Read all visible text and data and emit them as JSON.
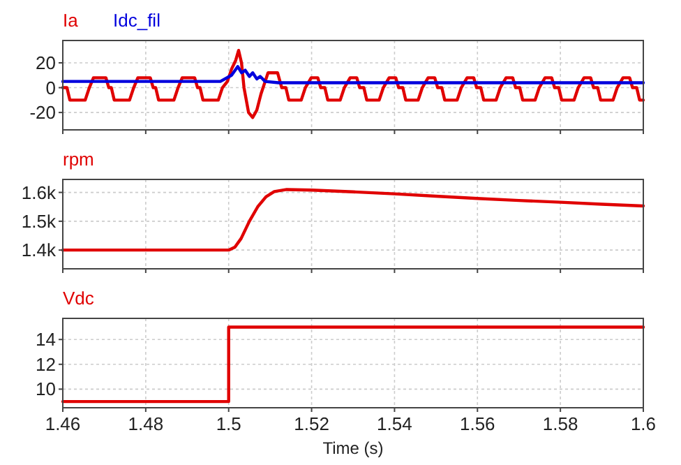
{
  "chart_data": [
    {
      "type": "line",
      "legend": "top left",
      "grid": true,
      "tick_labels": "y",
      "xlim": [
        1.46,
        1.6
      ],
      "xticks": [
        1.46,
        1.48,
        1.5,
        1.52,
        1.54,
        1.56,
        1.58,
        1.6
      ],
      "ylim": [
        -34,
        38
      ],
      "yticks": [
        -20,
        0,
        20
      ],
      "series": [
        {
          "name": "Ia",
          "color": "#e00000",
          "x": [
            1.46,
            1.461,
            1.4617,
            1.4654,
            1.4664,
            1.4674,
            1.4704,
            1.4711,
            1.4717,
            1.4724,
            1.4761,
            1.4771,
            1.4781,
            1.4811,
            1.4818,
            1.4824,
            1.4831,
            1.4868,
            1.4878,
            1.4888,
            1.4918,
            1.4925,
            1.4931,
            1.4938,
            1.4975,
            1.4985,
            1.4997,
            1.5007,
            1.5017,
            1.5024,
            1.5031,
            1.5037,
            1.5048,
            1.5058,
            1.5068,
            1.5078,
            1.5088,
            1.5095,
            1.5118,
            1.5128,
            1.5138,
            1.5145,
            1.5175,
            1.5185,
            1.5199,
            1.5215,
            1.5222,
            1.5232,
            1.5239,
            1.5269,
            1.5279,
            1.5293,
            1.5309,
            1.5316,
            1.5326,
            1.5333,
            1.5363,
            1.5373,
            1.5387,
            1.5403,
            1.541,
            1.542,
            1.5427,
            1.5457,
            1.5467,
            1.5481,
            1.5497,
            1.5504,
            1.5514,
            1.5521,
            1.5551,
            1.5561,
            1.5575,
            1.5591,
            1.5598,
            1.5608,
            1.5615,
            1.5645,
            1.5655,
            1.5669,
            1.5685,
            1.5692,
            1.5702,
            1.5709,
            1.5739,
            1.5749,
            1.5763,
            1.5779,
            1.5786,
            1.5796,
            1.5803,
            1.5833,
            1.5843,
            1.5857,
            1.5873,
            1.588,
            1.589,
            1.5897,
            1.5927,
            1.5937,
            1.5951,
            1.5967,
            1.5974,
            1.5984,
            1.5991,
            1.6
          ],
          "values": [
            0,
            0,
            -10,
            -10,
            0,
            8,
            8,
            0,
            0,
            -10,
            -10,
            0,
            8,
            8,
            0,
            0,
            -10,
            -10,
            0,
            8,
            8,
            0,
            0,
            -10,
            -10,
            0,
            5,
            15,
            22,
            30,
            20,
            0,
            -20,
            -24,
            -18,
            -5,
            5,
            12,
            12,
            0,
            0,
            -10,
            -10,
            0,
            8,
            8,
            0,
            0,
            -10,
            -10,
            0,
            8,
            8,
            0,
            0,
            -10,
            -10,
            0,
            8,
            8,
            0,
            0,
            -10,
            -10,
            0,
            8,
            8,
            0,
            0,
            -10,
            -10,
            0,
            8,
            8,
            0,
            0,
            -10,
            -10,
            0,
            8,
            8,
            0,
            0,
            -10,
            -10,
            0,
            8,
            8,
            0,
            0,
            -10,
            -10,
            0,
            8,
            8,
            0,
            0,
            -10,
            -10,
            0,
            8,
            8,
            0,
            0,
            -10,
            -10
          ]
        },
        {
          "name": "Idc_fil",
          "color": "#0000dd",
          "x": [
            1.46,
            1.498,
            1.5007,
            1.5022,
            1.5031,
            1.504,
            1.505,
            1.5058,
            1.5068,
            1.5076,
            1.5088,
            1.512,
            1.6
          ],
          "values": [
            5,
            5,
            10,
            17,
            12,
            14,
            9,
            12,
            7,
            9,
            5,
            4,
            4
          ]
        }
      ]
    },
    {
      "type": "line",
      "legend": "top left",
      "grid": true,
      "tick_labels": "y",
      "xlim": [
        1.46,
        1.6
      ],
      "xticks": [
        1.46,
        1.48,
        1.5,
        1.52,
        1.54,
        1.56,
        1.58,
        1.6
      ],
      "ylim": [
        1335,
        1645
      ],
      "yticks": [
        {
          "value": 1400,
          "label": "1.4k"
        },
        {
          "value": 1500,
          "label": "1.5k"
        },
        {
          "value": 1600,
          "label": "1.6k"
        }
      ],
      "series": [
        {
          "name": "rpm",
          "color": "#e00000",
          "x": [
            1.46,
            1.5,
            1.5015,
            1.503,
            1.505,
            1.507,
            1.509,
            1.511,
            1.514,
            1.52,
            1.53,
            1.54,
            1.55,
            1.56,
            1.57,
            1.58,
            1.59,
            1.6
          ],
          "values": [
            1400,
            1400,
            1410,
            1440,
            1500,
            1550,
            1585,
            1603,
            1610,
            1608,
            1602,
            1595,
            1587,
            1579,
            1572,
            1566,
            1559,
            1553
          ]
        }
      ]
    },
    {
      "type": "line",
      "legend": "top left",
      "grid": true,
      "xlabel": "Time (s)",
      "xlim": [
        1.46,
        1.6
      ],
      "xticks": [
        1.46,
        1.48,
        1.5,
        1.52,
        1.54,
        1.56,
        1.58,
        1.6
      ],
      "ylim": [
        8.5,
        15.7
      ],
      "yticks": [
        10,
        12,
        14
      ],
      "series": [
        {
          "name": "Vdc",
          "type": "step",
          "color": "#e00000",
          "x": [
            1.46,
            1.5,
            1.6
          ],
          "values": [
            9,
            15,
            15
          ]
        }
      ]
    }
  ]
}
